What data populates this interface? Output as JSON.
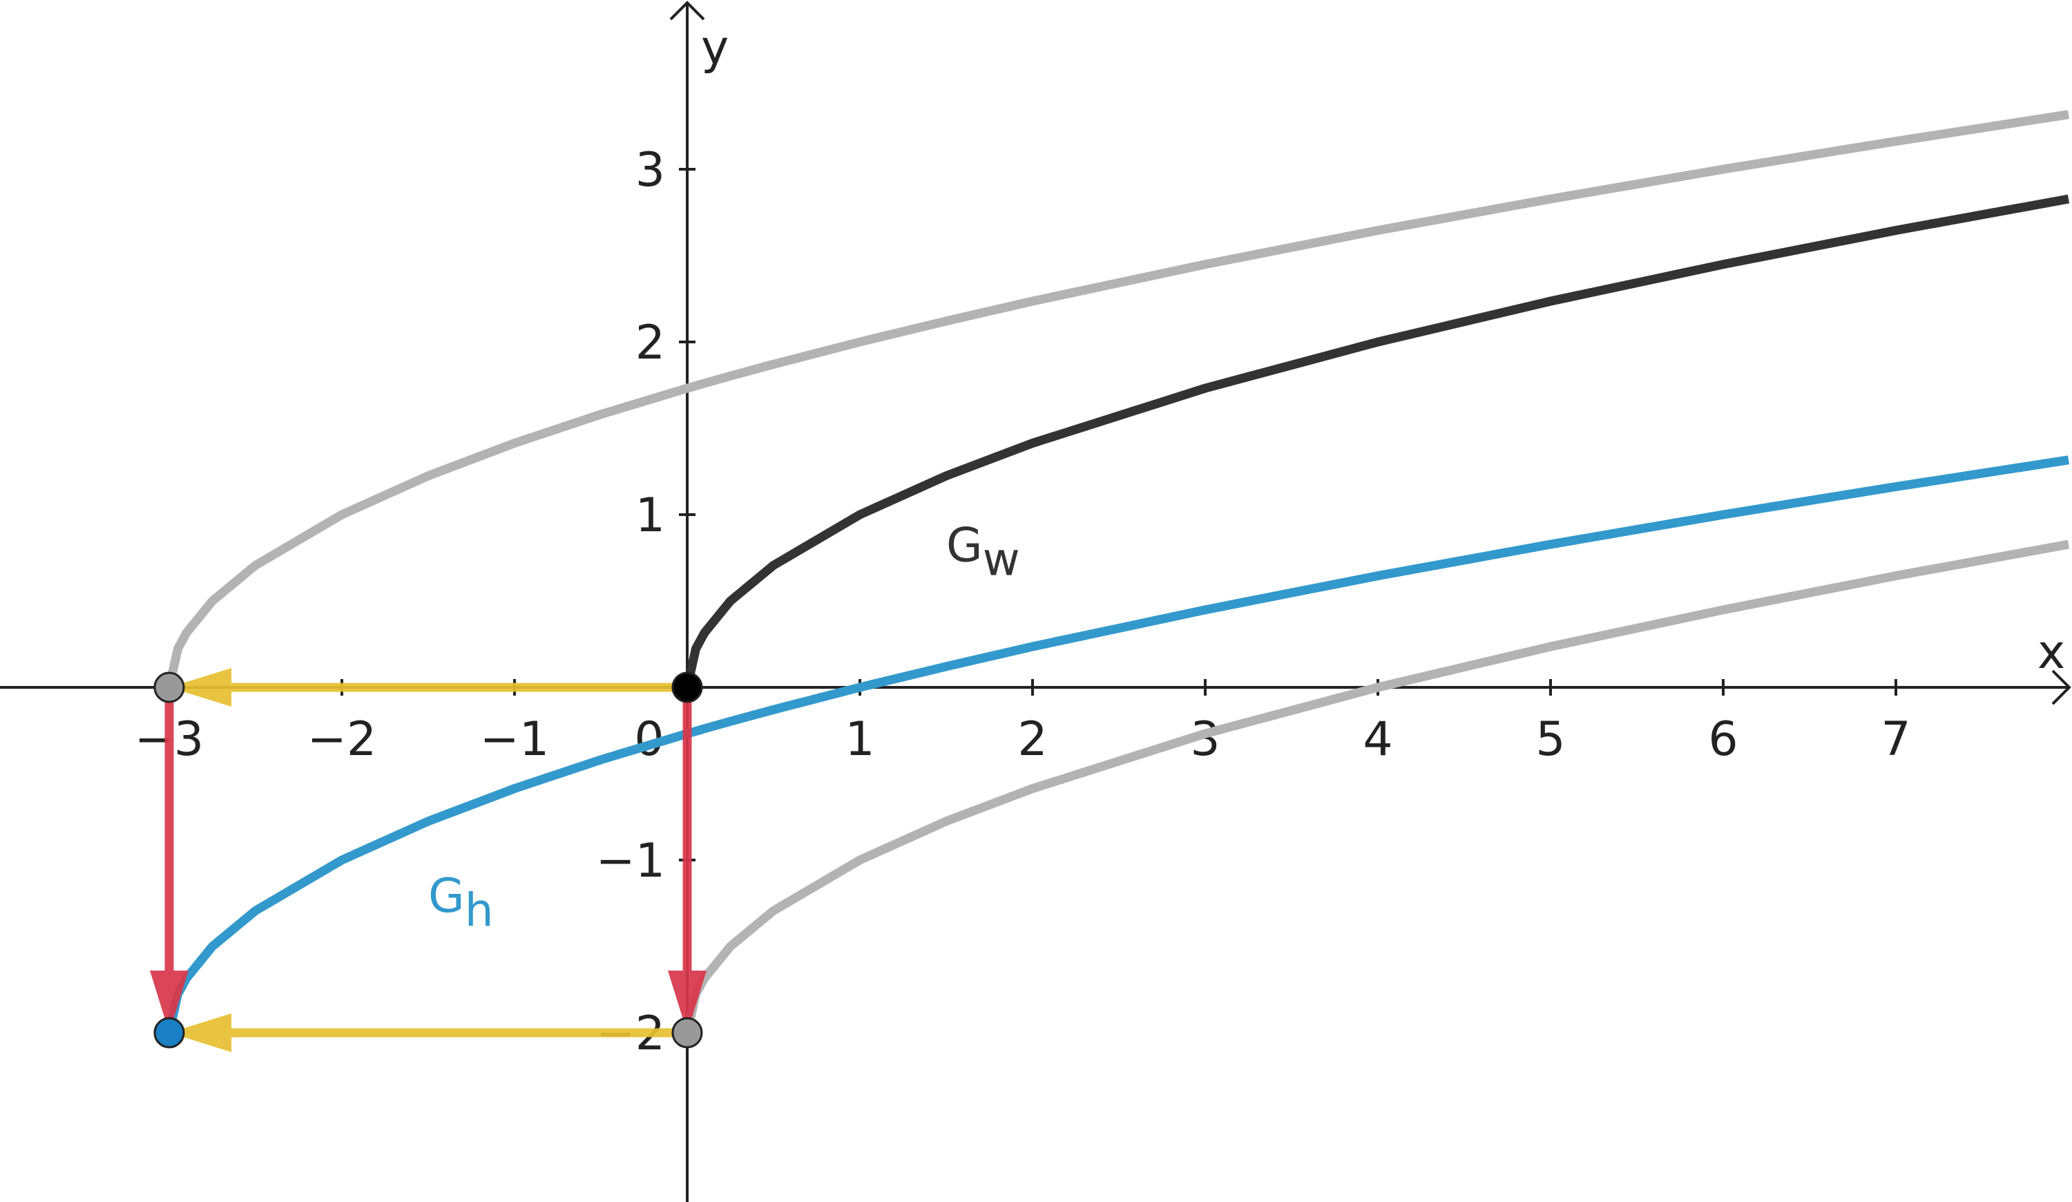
{
  "chart_data": {
    "type": "line",
    "x_label": "x",
    "y_label": "y",
    "x": [
      -3,
      -2.95,
      -2.9,
      -2.75,
      -2.5,
      -2,
      -1.5,
      -1,
      -0.5,
      0,
      0.05,
      0.1,
      0.25,
      0.5,
      1,
      1.5,
      2,
      3,
      4,
      5,
      6,
      7,
      8
    ],
    "series": [
      {
        "color": "#b3b3b3",
        "values": [
          0,
          0.224,
          0.316,
          0.5,
          0.707,
          1,
          1.225,
          1.414,
          1.581,
          1.732,
          1.746,
          1.761,
          1.803,
          1.871,
          2,
          2.121,
          2.236,
          2.449,
          2.646,
          2.828,
          3,
          3.162,
          3.317
        ]
      },
      {
        "color": "#b3b3b3",
        "values": [
          null,
          null,
          null,
          null,
          null,
          null,
          null,
          null,
          null,
          -2,
          -1.776,
          -1.684,
          -1.5,
          -1.293,
          -1,
          -0.775,
          -0.586,
          -0.268,
          0,
          0.236,
          0.449,
          0.646,
          0.828
        ]
      },
      {
        "color": "#3399cc",
        "label": {
          "base": "G",
          "sub": "h"
        },
        "values": [
          -2,
          -1.776,
          -1.684,
          -1.5,
          -1.293,
          -1,
          -0.775,
          -0.586,
          -0.419,
          -0.268,
          -0.254,
          -0.239,
          -0.197,
          -0.129,
          0,
          0.121,
          0.236,
          0.449,
          0.646,
          0.828,
          1,
          1.162,
          1.317
        ]
      },
      {
        "color": "#333333",
        "label": {
          "base": "G",
          "sub": "w"
        },
        "values": [
          null,
          null,
          null,
          null,
          null,
          null,
          null,
          null,
          null,
          0,
          0.224,
          0.316,
          0.5,
          0.707,
          1,
          1.225,
          1.414,
          1.732,
          2,
          2.236,
          2.449,
          2.646,
          2.828
        ]
      }
    ],
    "arrows": [
      {
        "from": [
          0,
          0
        ],
        "to": [
          -3,
          0
        ],
        "color": "#e8c030"
      },
      {
        "from": [
          0,
          -2
        ],
        "to": [
          -3,
          -2
        ],
        "color": "#e8c030"
      },
      {
        "from": [
          -3,
          0
        ],
        "to": [
          -3,
          -2
        ],
        "color": "#d9364a"
      },
      {
        "from": [
          0,
          0
        ],
        "to": [
          0,
          -2
        ],
        "color": "#d9364a"
      }
    ],
    "points": [
      {
        "x": -3,
        "y": 0,
        "color": "#999999"
      },
      {
        "x": 0,
        "y": 0,
        "color": "#000000"
      },
      {
        "x": -3,
        "y": -2,
        "color": "#1a7fc4"
      },
      {
        "x": 0,
        "y": -2,
        "color": "#999999"
      }
    ],
    "xlim": [
      -3.98,
      8.02
    ],
    "ylim": [
      -2.98,
      3.98
    ],
    "xticks": [
      {
        "value": -3,
        "label": "−3"
      },
      {
        "value": -2,
        "label": "−2"
      },
      {
        "value": -1,
        "label": "−1"
      },
      0,
      1,
      2,
      3,
      4,
      5,
      6,
      7
    ],
    "yticks": [
      {
        "value": -2,
        "label": "−2"
      },
      {
        "value": -1,
        "label": "−1"
      },
      1,
      2,
      3
    ]
  }
}
